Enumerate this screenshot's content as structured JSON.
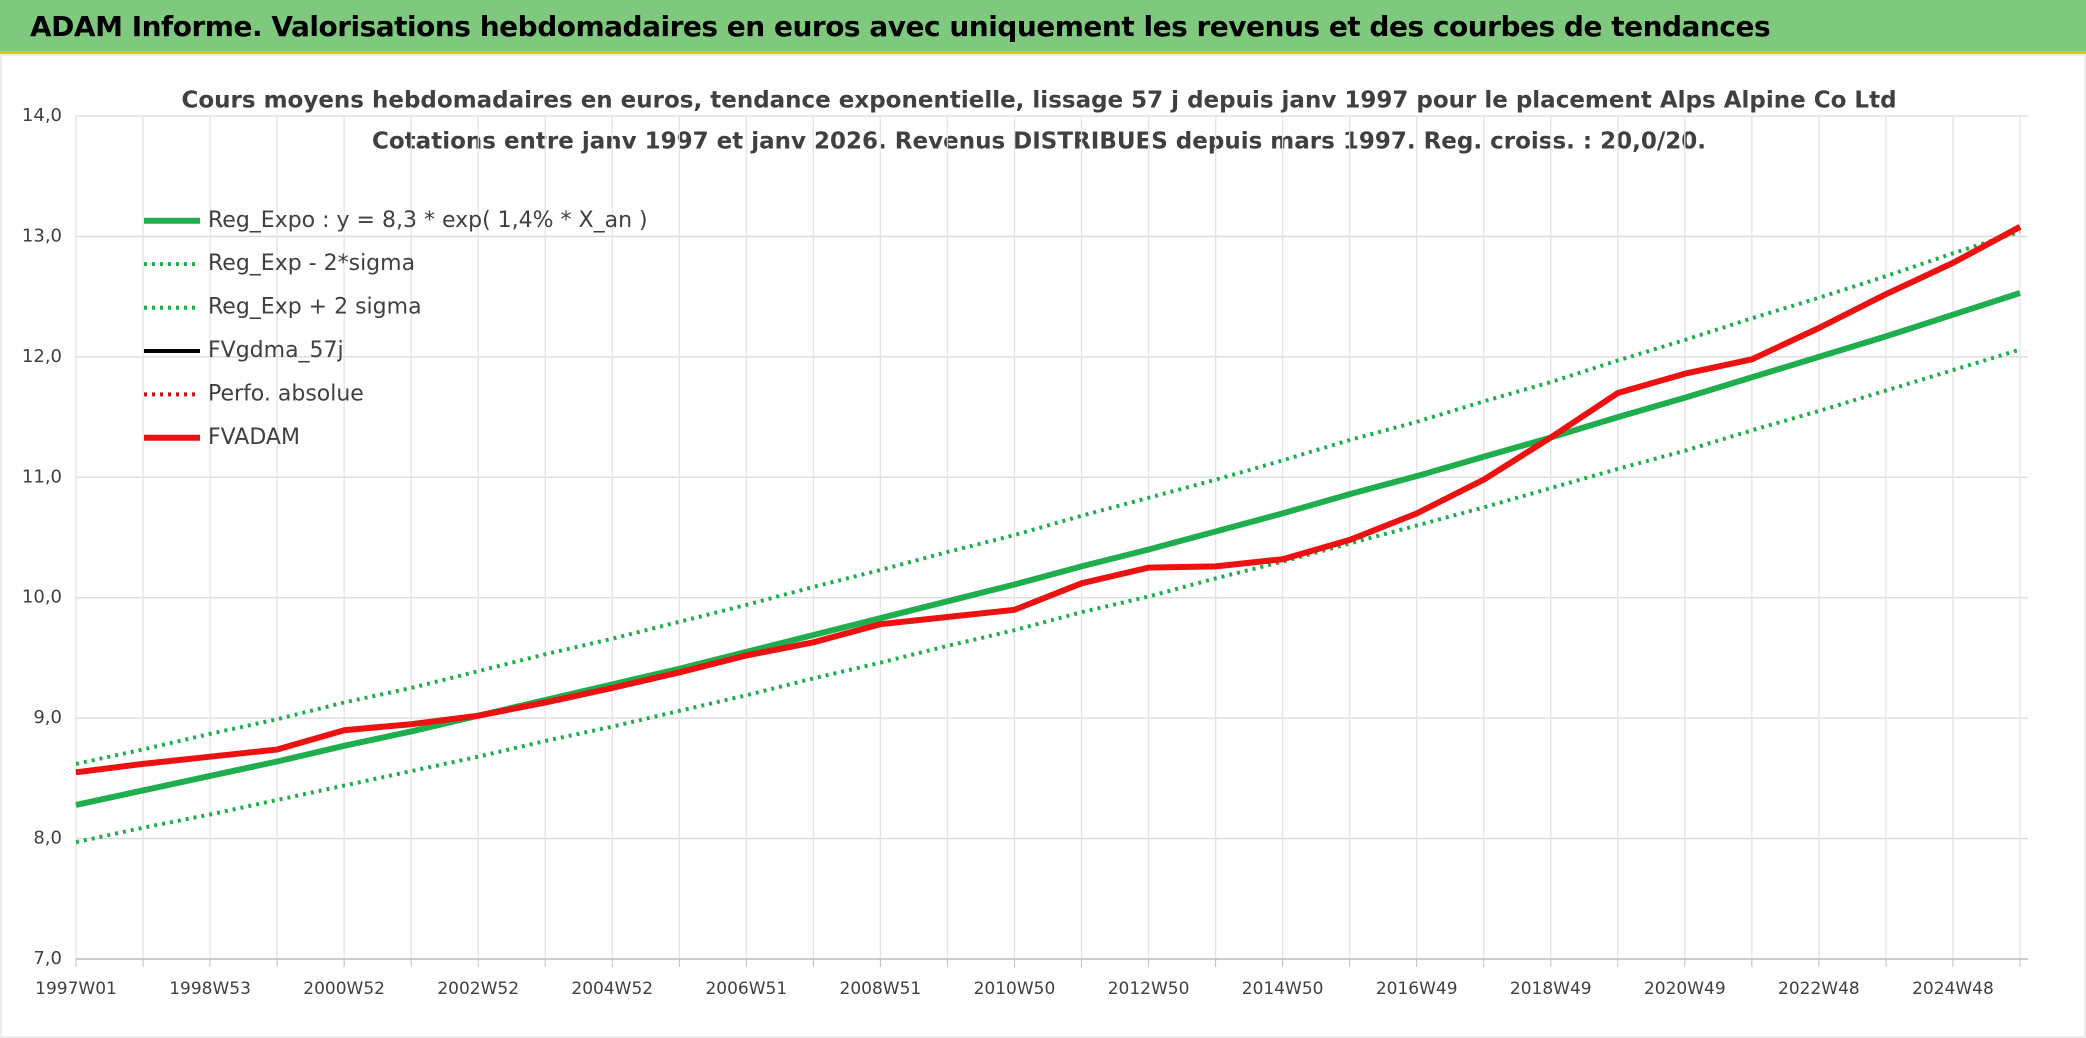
{
  "header": {
    "title": "ADAM Informe. Valorisations hebdomadaires en euros avec uniquement les revenus et des courbes de tendances"
  },
  "chart_data": {
    "type": "line",
    "title": "Cours moyens hebdomadaires en euros, tendance exponentielle, lissage 57 j depuis janv 1997 pour le placement Alps Alpine Co Ltd",
    "subtitle": "Cotations entre janv 1997 et janv 2026. Revenus DISTRIBUES depuis mars 1997. Reg. croiss. : 20,0/20.",
    "categories": [
      "1997W01",
      null,
      "1998W53",
      null,
      "2000W52",
      null,
      "2002W52",
      null,
      "2004W52",
      null,
      "2006W51",
      null,
      "2008W51",
      null,
      "2010W50",
      null,
      "2012W50",
      null,
      "2014W50",
      null,
      "2016W49",
      null,
      "2018W49",
      null,
      "2020W49",
      null,
      "2022W48",
      null,
      "2024W48",
      null
    ],
    "ylim": [
      7,
      14
    ],
    "yticks": [
      {
        "value": 7,
        "label": "7,0"
      },
      {
        "value": 8,
        "label": "8,0"
      },
      {
        "value": 9,
        "label": "9,0"
      },
      {
        "value": 10,
        "label": "10,0"
      },
      {
        "value": 11,
        "label": "11,0"
      },
      {
        "value": 12,
        "label": "12,0"
      },
      {
        "value": 13,
        "label": "13,0"
      },
      {
        "value": 14,
        "label": "14,0"
      }
    ],
    "grid": true,
    "legend": "top-left",
    "series": [
      {
        "name": "Reg_Expo : y = 8,3 * exp( 1,4% *  X_an )",
        "color": "#1fae4e",
        "dash": "solid",
        "values": [
          8.28,
          8.4,
          8.52,
          8.64,
          8.77,
          8.89,
          9.02,
          9.15,
          9.28,
          9.41,
          9.55,
          9.69,
          9.83,
          9.97,
          10.11,
          10.26,
          10.4,
          10.55,
          10.7,
          10.86,
          11.01,
          11.17,
          11.33,
          11.5,
          11.66,
          11.83,
          12.0,
          12.17,
          12.35,
          12.53
        ]
      },
      {
        "name": "Reg_Exp - 2*sigma",
        "color": "#1fae4e",
        "dash": "dotted",
        "values": [
          7.97,
          8.09,
          8.2,
          8.32,
          8.44,
          8.56,
          8.68,
          8.81,
          8.93,
          9.06,
          9.19,
          9.33,
          9.46,
          9.6,
          9.73,
          9.88,
          10.01,
          10.16,
          10.3,
          10.45,
          10.6,
          10.75,
          10.91,
          11.07,
          11.22,
          11.39,
          11.55,
          11.72,
          11.89,
          12.06
        ]
      },
      {
        "name": "Reg_Exp + 2 sigma",
        "color": "#1fae4e",
        "dash": "dotted",
        "values": [
          8.62,
          8.74,
          8.87,
          8.99,
          9.13,
          9.25,
          9.39,
          9.53,
          9.66,
          9.8,
          9.94,
          10.09,
          10.23,
          10.38,
          10.52,
          10.68,
          10.83,
          10.98,
          11.14,
          11.31,
          11.46,
          11.63,
          11.79,
          11.97,
          12.14,
          12.32,
          12.49,
          12.67,
          12.86,
          13.04
        ]
      },
      {
        "name": "FVgdma_57j",
        "color": "#000000",
        "dash": "solid",
        "values": [
          8.55,
          8.62,
          8.68,
          8.74,
          8.9,
          8.95,
          9.02,
          9.13,
          9.25,
          9.38,
          9.52,
          9.63,
          9.78,
          9.84,
          9.9,
          10.12,
          10.25,
          10.26,
          10.32,
          10.48,
          10.7,
          10.98,
          11.33,
          11.7,
          11.86,
          11.98,
          12.24,
          12.52,
          12.78,
          13.08
        ]
      },
      {
        "name": "Perfo. absolue",
        "color": "#d01010",
        "dash": "dotted",
        "values": [
          8.55,
          8.62,
          8.68,
          8.74,
          8.9,
          8.95,
          9.02,
          9.13,
          9.25,
          9.38,
          9.52,
          9.63,
          9.78,
          9.84,
          9.9,
          10.12,
          10.25,
          10.26,
          10.32,
          10.48,
          10.7,
          10.98,
          11.33,
          11.7,
          11.86,
          11.98,
          12.24,
          12.52,
          12.78,
          13.08
        ]
      },
      {
        "name": "FVADAM",
        "color": "#ee1111",
        "dash": "solid",
        "values": [
          8.55,
          8.62,
          8.68,
          8.74,
          8.9,
          8.95,
          9.02,
          9.13,
          9.25,
          9.38,
          9.52,
          9.63,
          9.78,
          9.84,
          9.9,
          10.12,
          10.25,
          10.26,
          10.32,
          10.48,
          10.7,
          10.98,
          11.33,
          11.7,
          11.86,
          11.98,
          12.24,
          12.52,
          12.78,
          13.08
        ]
      }
    ]
  }
}
